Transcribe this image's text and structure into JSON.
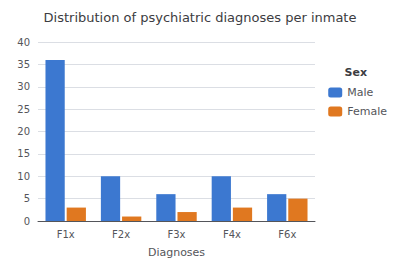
{
  "chart_data": {
    "type": "bar",
    "title": "Distribution of psychiatric diagnoses per inmate",
    "xlabel": "Diagnoses",
    "categories": [
      "F1x",
      "F2x",
      "F3x",
      "F4x",
      "F6x"
    ],
    "series": [
      {
        "name": "Male",
        "color": "#3c78d0",
        "values": [
          36,
          10,
          6,
          10,
          6
        ]
      },
      {
        "name": "Female",
        "color": "#e07820",
        "values": [
          3,
          1,
          2,
          3,
          5
        ]
      }
    ],
    "ylim": [
      0,
      40
    ],
    "yticks": [
      0,
      5,
      10,
      15,
      20,
      25,
      30,
      35,
      40
    ],
    "grid": true,
    "legend": "right",
    "legend_title": "Sex"
  }
}
